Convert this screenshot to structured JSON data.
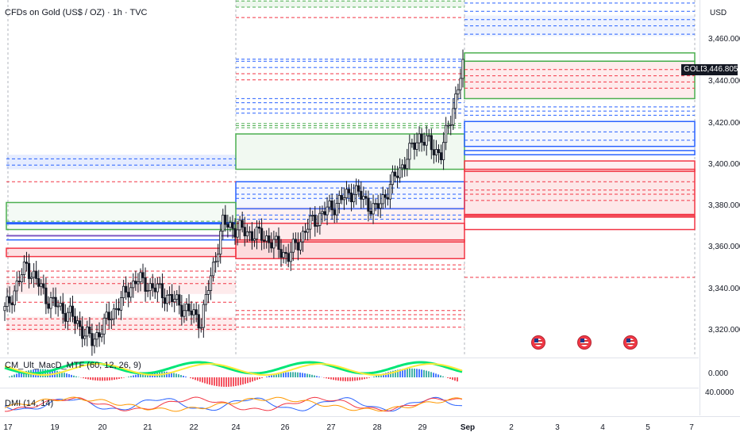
{
  "chart": {
    "title": "CFDs on Gold (US$ / OZ) · 1h · TVC",
    "symbol_tag": "GOLD",
    "last_price": "3,446.805",
    "currency": "USD",
    "price_ticks": [
      "3,460.000",
      "3,440.000",
      "3,420.000",
      "3,400.000",
      "3,380.000",
      "3,360.000",
      "3,340.000",
      "3,320.000"
    ],
    "time_ticks": [
      "17",
      "19",
      "20",
      "21",
      "22",
      "24",
      "26",
      "27",
      "28",
      "29",
      "Sep",
      "2",
      "3",
      "4",
      "5",
      "7"
    ],
    "indicators": {
      "macd_label": "CM_Ult_MacD_MTF (60, 12, 26, 9)",
      "macd_axis_value": "0.000",
      "dmi_label": "DMI (14, 14)",
      "dmi_axis_value": "40.0000"
    },
    "colors": {
      "up": "#131722",
      "green_zone": "#4caf50",
      "red_zone": "#f23645",
      "blue_zone": "#2962ff",
      "purple_line": "#7e57c2"
    },
    "event_icons": [
      "us-flag-icon",
      "us-flag-icon",
      "us-flag-icon"
    ]
  },
  "chart_data": {
    "type": "candlestick",
    "symbol": "GOLD",
    "timeframe": "1h",
    "x_axis_ticks": [
      "17",
      "19",
      "20",
      "21",
      "22",
      "24",
      "26",
      "27",
      "28",
      "29",
      "Sep",
      "2",
      "3",
      "4",
      "5",
      "7"
    ],
    "y_axis_ticks": [
      3460,
      3440,
      3420,
      3400,
      3380,
      3360,
      3340,
      3320
    ],
    "last_price": 3446.805,
    "price_path": [
      {
        "date": "Aug 18",
        "close": 3330
      },
      {
        "date": "Aug 18",
        "close": 3352
      },
      {
        "date": "Aug 19",
        "close": 3335
      },
      {
        "date": "Aug 19",
        "close": 3328
      },
      {
        "date": "Aug 20",
        "close": 3315
      },
      {
        "date": "Aug 20",
        "close": 3330
      },
      {
        "date": "Aug 21",
        "close": 3345
      },
      {
        "date": "Aug 21",
        "close": 3340
      },
      {
        "date": "Aug 22",
        "close": 3333
      },
      {
        "date": "Aug 22",
        "close": 3325
      },
      {
        "date": "Aug 22",
        "close": 3372
      },
      {
        "date": "Aug 25",
        "close": 3368
      },
      {
        "date": "Aug 25",
        "close": 3365
      },
      {
        "date": "Aug 26",
        "close": 3356
      },
      {
        "date": "Aug 26",
        "close": 3372
      },
      {
        "date": "Aug 27",
        "close": 3380
      },
      {
        "date": "Aug 27",
        "close": 3388
      },
      {
        "date": "Aug 28",
        "close": 3378
      },
      {
        "date": "Aug 28",
        "close": 3396
      },
      {
        "date": "Aug 29",
        "close": 3414
      },
      {
        "date": "Aug 29",
        "close": 3405
      },
      {
        "date": "Aug 29",
        "close": 3446.8
      }
    ]
  }
}
